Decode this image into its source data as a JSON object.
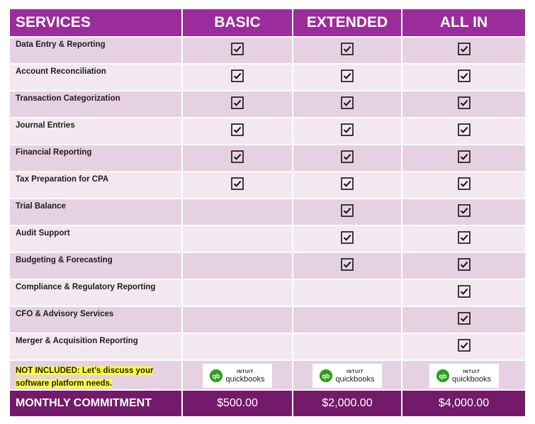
{
  "header": {
    "services": "SERVICES",
    "basic": "BASIC",
    "extended": "EXTENDED",
    "all_in": "ALL IN"
  },
  "rows": [
    {
      "label": "Data Entry & Reporting",
      "basic": true,
      "extended": true,
      "all_in": true
    },
    {
      "label": "Account Reconciliation",
      "basic": true,
      "extended": true,
      "all_in": true
    },
    {
      "label": "Transaction Categorization",
      "basic": true,
      "extended": true,
      "all_in": true
    },
    {
      "label": "Journal Entries",
      "basic": true,
      "extended": true,
      "all_in": true
    },
    {
      "label": "Financial Reporting",
      "basic": true,
      "extended": true,
      "all_in": true
    },
    {
      "label": "Tax Preparation for CPA",
      "basic": true,
      "extended": true,
      "all_in": true
    },
    {
      "label": "Trial Balance",
      "basic": false,
      "extended": true,
      "all_in": true
    },
    {
      "label": "Audit Support",
      "basic": false,
      "extended": true,
      "all_in": true
    },
    {
      "label": "Budgeting & Forecasting",
      "basic": false,
      "extended": true,
      "all_in": true
    },
    {
      "label": "Compliance & Regulatory Reporting",
      "basic": false,
      "extended": false,
      "all_in": true
    },
    {
      "label": "CFO & Advisory Services",
      "basic": false,
      "extended": false,
      "all_in": true
    },
    {
      "label": "Merger & Acquisition Reporting",
      "basic": false,
      "extended": false,
      "all_in": true
    }
  ],
  "note": {
    "line1": "NOT INCLUDED: Let’s discuss your",
    "line2": "software platform needs."
  },
  "logo": {
    "brand_top": "INTUIT",
    "brand_name": "quickbooks",
    "mark": "qb",
    "color": "#2ca01c"
  },
  "footer": {
    "label": "MONTHLY COMMITMENT",
    "basic": "$500.00",
    "extended": "$2,000.00",
    "all_in": "$4,000.00"
  },
  "colors": {
    "header": "#9b2c9b",
    "footer": "#731a6b",
    "row_dark": "#e6d1e2",
    "row_light": "#f3e8f0",
    "highlight": "#ffff33"
  },
  "icons": {
    "check": "checked-box-icon"
  }
}
